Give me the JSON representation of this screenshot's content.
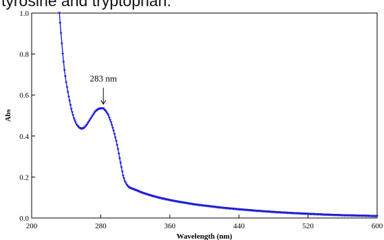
{
  "caption_fragment": "tyrosine and tryptophan.",
  "chart_data": {
    "type": "line",
    "xlabel": "Wavelength (nm)",
    "ylabel": "Abs",
    "xlim": [
      200,
      600
    ],
    "ylim": [
      0.0,
      1.0
    ],
    "x_ticks": [
      200,
      280,
      360,
      440,
      520,
      600
    ],
    "y_ticks": [
      0.0,
      0.2,
      0.4,
      0.6,
      0.8,
      1.0
    ],
    "y_tick_labels": [
      "0.0",
      "0.2",
      "0.4",
      "0.6",
      "0.8",
      "1.0"
    ],
    "grid": false,
    "line_color": "#1f1fd6",
    "marker": "triangle-down",
    "annotation": {
      "text": "283 nm",
      "x": 283,
      "y": 0.535
    },
    "series": [
      {
        "x": [
          232,
          234,
          236,
          238,
          240,
          243,
          246,
          249,
          252,
          255,
          258,
          261,
          264,
          267,
          270,
          273,
          276,
          279,
          281,
          283,
          286,
          289,
          292,
          295,
          298,
          300,
          302,
          304,
          306,
          308,
          310,
          312,
          314,
          317,
          320,
          325,
          330,
          340,
          350,
          360,
          370,
          380,
          390,
          400,
          410,
          420,
          440,
          460,
          480,
          500,
          520,
          540,
          560,
          580,
          600
        ],
        "y": [
          1.0,
          0.9,
          0.8,
          0.72,
          0.66,
          0.59,
          0.53,
          0.485,
          0.455,
          0.44,
          0.435,
          0.44,
          0.455,
          0.475,
          0.495,
          0.515,
          0.528,
          0.534,
          0.535,
          0.534,
          0.52,
          0.5,
          0.465,
          0.425,
          0.375,
          0.335,
          0.29,
          0.245,
          0.205,
          0.178,
          0.162,
          0.152,
          0.146,
          0.142,
          0.137,
          0.128,
          0.12,
          0.107,
          0.096,
          0.087,
          0.079,
          0.072,
          0.065,
          0.06,
          0.055,
          0.05,
          0.042,
          0.035,
          0.029,
          0.024,
          0.02,
          0.016,
          0.013,
          0.011,
          0.009
        ]
      }
    ]
  }
}
